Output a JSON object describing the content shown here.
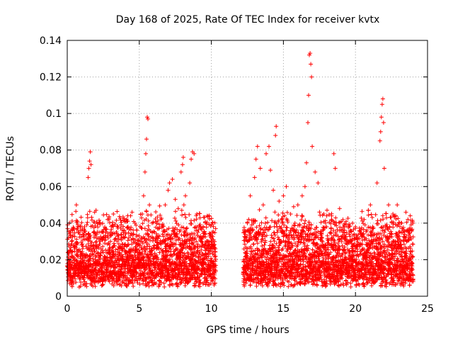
{
  "chart_data": {
    "type": "scatter",
    "title": "Day 168 of 2025, Rate Of TEC Index for receiver kvtx",
    "xlabel": "GPS time / hours",
    "ylabel": "ROTI / TECUs",
    "xlim": [
      0,
      25
    ],
    "ylim": [
      0,
      0.14
    ],
    "xticks": [
      0,
      5,
      10,
      15,
      20,
      25
    ],
    "xtick_labels": [
      "0",
      "5",
      "10",
      "15",
      "20",
      "25"
    ],
    "yticks": [
      0,
      0.02,
      0.04,
      0.06,
      0.08,
      0.1,
      0.12,
      0.14
    ],
    "ytick_labels": [
      "0",
      "0.02",
      "0.04",
      "0.06",
      "0.08",
      "0.1",
      "0.12",
      "0.14"
    ],
    "grid": true,
    "marker": "+",
    "color": "#ff0000",
    "data_gap_hours": [
      10.3,
      12.2
    ],
    "series": [
      {
        "values": [
          [
            0.1,
            0.012
          ],
          [
            0.2,
            0.025
          ],
          [
            0.3,
            0.03
          ],
          [
            0.5,
            0.018
          ],
          [
            0.7,
            0.041
          ],
          [
            0.8,
            0.035
          ],
          [
            1.0,
            0.028
          ],
          [
            1.2,
            0.038
          ],
          [
            1.45,
            0.065
          ],
          [
            1.5,
            0.07
          ],
          [
            1.55,
            0.074
          ],
          [
            1.6,
            0.079
          ],
          [
            1.65,
            0.072
          ],
          [
            1.9,
            0.046
          ],
          [
            2.0,
            0.047
          ],
          [
            2.2,
            0.02
          ],
          [
            2.5,
            0.035
          ],
          [
            2.8,
            0.042
          ],
          [
            3.0,
            0.03
          ],
          [
            3.2,
            0.045
          ],
          [
            3.5,
            0.038
          ],
          [
            3.8,
            0.025
          ],
          [
            4.0,
            0.041
          ],
          [
            4.2,
            0.044
          ],
          [
            4.5,
            0.046
          ],
          [
            4.7,
            0.04
          ],
          [
            5.0,
            0.02
          ],
          [
            5.2,
            0.045
          ],
          [
            5.3,
            0.055
          ],
          [
            5.4,
            0.068
          ],
          [
            5.45,
            0.078
          ],
          [
            5.5,
            0.086
          ],
          [
            5.55,
            0.098
          ],
          [
            5.6,
            0.097
          ],
          [
            5.7,
            0.05
          ],
          [
            5.9,
            0.035
          ],
          [
            6.2,
            0.028
          ],
          [
            6.5,
            0.042
          ],
          [
            6.8,
            0.05
          ],
          [
            7.0,
            0.058
          ],
          [
            7.1,
            0.062
          ],
          [
            7.3,
            0.064
          ],
          [
            7.5,
            0.053
          ],
          [
            7.7,
            0.048
          ],
          [
            7.9,
            0.068
          ],
          [
            8.0,
            0.072
          ],
          [
            8.05,
            0.076
          ],
          [
            8.2,
            0.055
          ],
          [
            8.5,
            0.062
          ],
          [
            8.6,
            0.075
          ],
          [
            8.7,
            0.079
          ],
          [
            8.8,
            0.078
          ],
          [
            9.0,
            0.045
          ],
          [
            9.3,
            0.03
          ],
          [
            9.5,
            0.035
          ],
          [
            9.8,
            0.025
          ],
          [
            10.1,
            0.018
          ],
          [
            12.3,
            0.035
          ],
          [
            12.5,
            0.04
          ],
          [
            12.7,
            0.055
          ],
          [
            13.0,
            0.065
          ],
          [
            13.1,
            0.075
          ],
          [
            13.2,
            0.082
          ],
          [
            13.4,
            0.07
          ],
          [
            13.6,
            0.05
          ],
          [
            13.8,
            0.078
          ],
          [
            14.0,
            0.082
          ],
          [
            14.1,
            0.069
          ],
          [
            14.3,
            0.058
          ],
          [
            14.45,
            0.088
          ],
          [
            14.5,
            0.093
          ],
          [
            14.7,
            0.052
          ],
          [
            15.0,
            0.055
          ],
          [
            15.2,
            0.06
          ],
          [
            15.5,
            0.045
          ],
          [
            15.8,
            0.04
          ],
          [
            16.0,
            0.05
          ],
          [
            16.3,
            0.055
          ],
          [
            16.5,
            0.06
          ],
          [
            16.6,
            0.073
          ],
          [
            16.7,
            0.095
          ],
          [
            16.75,
            0.11
          ],
          [
            16.8,
            0.132
          ],
          [
            16.85,
            0.133
          ],
          [
            16.9,
            0.127
          ],
          [
            16.95,
            0.12
          ],
          [
            17.0,
            0.082
          ],
          [
            17.2,
            0.068
          ],
          [
            17.4,
            0.062
          ],
          [
            17.8,
            0.045
          ],
          [
            18.0,
            0.038
          ],
          [
            18.3,
            0.035
          ],
          [
            18.5,
            0.078
          ],
          [
            18.6,
            0.07
          ],
          [
            18.9,
            0.048
          ],
          [
            19.2,
            0.035
          ],
          [
            19.5,
            0.03
          ],
          [
            19.8,
            0.04
          ],
          [
            20.0,
            0.038
          ],
          [
            20.3,
            0.028
          ],
          [
            20.6,
            0.042
          ],
          [
            20.9,
            0.047
          ],
          [
            21.2,
            0.038
          ],
          [
            21.5,
            0.062
          ],
          [
            21.7,
            0.085
          ],
          [
            21.75,
            0.09
          ],
          [
            21.8,
            0.098
          ],
          [
            21.85,
            0.105
          ],
          [
            21.9,
            0.108
          ],
          [
            21.95,
            0.095
          ],
          [
            22.0,
            0.07
          ],
          [
            22.3,
            0.05
          ],
          [
            22.6,
            0.045
          ],
          [
            22.9,
            0.05
          ],
          [
            23.2,
            0.04
          ],
          [
            23.5,
            0.046
          ],
          [
            23.8,
            0.044
          ]
        ]
      }
    ]
  }
}
